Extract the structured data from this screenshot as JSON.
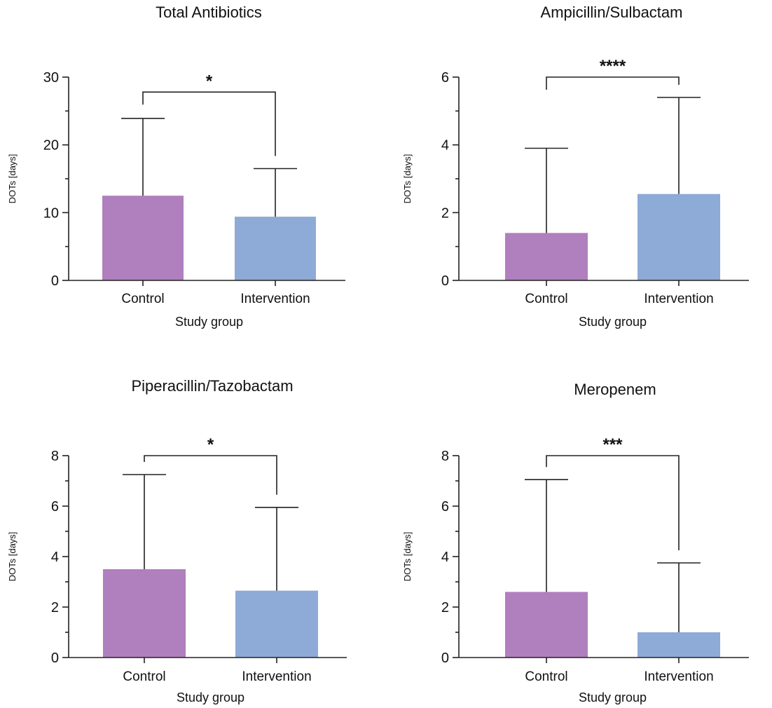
{
  "colors": {
    "control": "#b07fbd",
    "intervention": "#8eaad6",
    "axis": "#222222"
  },
  "chart_data": [
    {
      "type": "bar",
      "title": "Total Antibiotics",
      "xlabel": "Study group",
      "ylabel": "DOTs [days]",
      "categories": [
        "Control",
        "Intervention"
      ],
      "values": [
        12.5,
        9.4
      ],
      "error_upper": [
        23.9,
        16.5
      ],
      "ylim": [
        0,
        30
      ],
      "yticks": [
        0,
        10,
        20,
        30
      ],
      "significance": "*",
      "bracket_y": 27.8
    },
    {
      "type": "bar",
      "title": "Ampicillin/Sulbactam",
      "xlabel": "Study group",
      "ylabel": "DOTs [days]",
      "categories": [
        "Control",
        "Intervention"
      ],
      "values": [
        1.4,
        2.55
      ],
      "error_upper": [
        3.9,
        5.4
      ],
      "ylim": [
        0,
        6
      ],
      "yticks": [
        0,
        2,
        4,
        6
      ],
      "significance": "****",
      "bracket_y": 6.0
    },
    {
      "type": "bar",
      "title": "Piperacillin/Tazobactam",
      "xlabel": "Study group",
      "ylabel": "DOTs [days]",
      "categories": [
        "Control",
        "Intervention"
      ],
      "values": [
        3.5,
        2.65
      ],
      "error_upper": [
        7.25,
        5.95
      ],
      "ylim": [
        0,
        8
      ],
      "yticks": [
        0,
        2,
        4,
        6,
        8
      ],
      "significance": "*",
      "bracket_y": 8.0
    },
    {
      "type": "bar",
      "title": "Meropenem",
      "xlabel": "Study group",
      "ylabel": "DOTs [days]",
      "categories": [
        "Control",
        "Intervention"
      ],
      "values": [
        2.6,
        1.0
      ],
      "error_upper": [
        7.05,
        3.75
      ],
      "ylim": [
        0,
        8
      ],
      "yticks": [
        0,
        2,
        4,
        6,
        8
      ],
      "significance": "***",
      "bracket_y": 8.0
    }
  ]
}
